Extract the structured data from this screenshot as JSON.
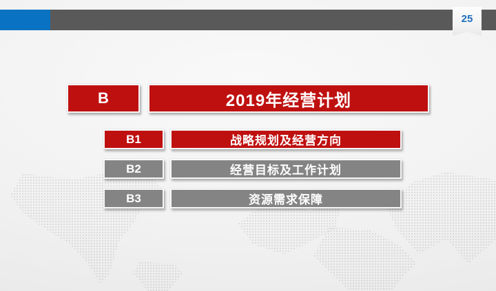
{
  "slide": {
    "page_number": "25",
    "title": {
      "index": "B",
      "text": "2019年经营计划"
    },
    "items": [
      {
        "index": "B1",
        "text": "战略规划及经营方向",
        "state": "highlighted"
      },
      {
        "index": "B2",
        "text": "经营目标及工作计划",
        "state": "normal"
      },
      {
        "index": "B3",
        "text": "资源需求保障",
        "state": "normal"
      }
    ],
    "colors": {
      "accent_red": "#BF1010",
      "accent_gray": "#848484",
      "top_bar_gray": "#595959",
      "blue_accent": "#0A72C2",
      "page_number_blue": "#1F6FBE"
    }
  }
}
